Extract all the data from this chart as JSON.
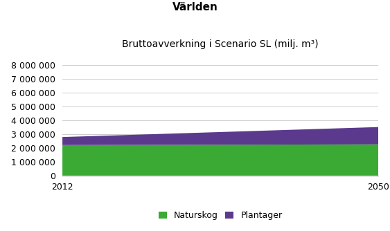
{
  "title": "Världen",
  "subtitle": "Bruttoavverkning i Scenario SL (milj. m³)",
  "years": [
    2012,
    2050
  ],
  "naturskog": [
    2200000,
    2250000
  ],
  "plantager": [
    580000,
    1250000
  ],
  "color_naturskog": "#3aaa35",
  "color_plantager": "#5b3a8e",
  "ylim": [
    0,
    9000000
  ],
  "yticks": [
    0,
    1000000,
    2000000,
    3000000,
    4000000,
    5000000,
    6000000,
    7000000,
    8000000
  ],
  "background_color": "#ffffff",
  "legend_labels": [
    "Naturskog",
    "Plantager"
  ],
  "title_fontsize": 11,
  "subtitle_fontsize": 10,
  "tick_fontsize": 9
}
